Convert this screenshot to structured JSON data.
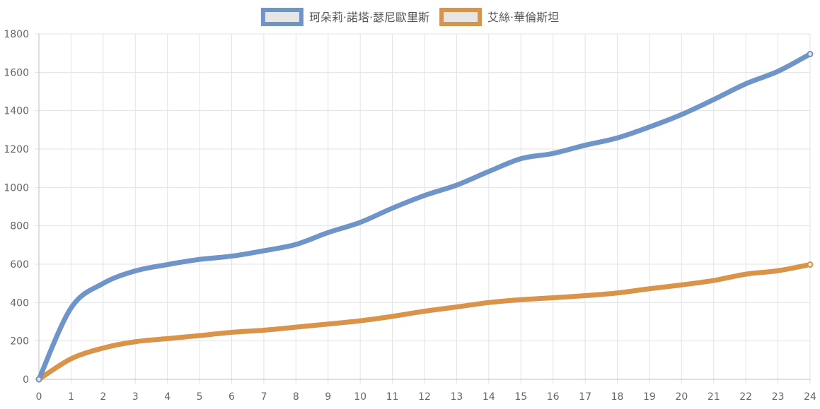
{
  "chart_data": {
    "type": "line",
    "title": "",
    "xlabel": "",
    "ylabel": "",
    "x": [
      0,
      1,
      2,
      3,
      4,
      5,
      6,
      7,
      8,
      9,
      10,
      11,
      12,
      13,
      14,
      15,
      16,
      17,
      18,
      19,
      20,
      21,
      22,
      23,
      24
    ],
    "xlim": [
      0,
      24
    ],
    "ylim": [
      0,
      1800
    ],
    "y_ticks": [
      0,
      200,
      400,
      600,
      800,
      1000,
      1200,
      1400,
      1600,
      1800
    ],
    "grid": true,
    "legend_position": "top-center",
    "series": [
      {
        "name": "珂朵莉·諾塔·瑟尼歐里斯",
        "color": "#6f95c8",
        "values": [
          0,
          372,
          500,
          565,
          598,
          625,
          642,
          670,
          703,
          765,
          818,
          892,
          958,
          1012,
          1083,
          1150,
          1177,
          1220,
          1258,
          1315,
          1380,
          1458,
          1540,
          1605,
          1695
        ]
      },
      {
        "name": "艾絲·華倫斯坦",
        "color": "#d9944a",
        "values": [
          0,
          107,
          163,
          196,
          212,
          228,
          245,
          256,
          272,
          288,
          305,
          328,
          355,
          377,
          400,
          415,
          425,
          436,
          450,
          472,
          492,
          515,
          548,
          566,
          598
        ]
      }
    ]
  }
}
